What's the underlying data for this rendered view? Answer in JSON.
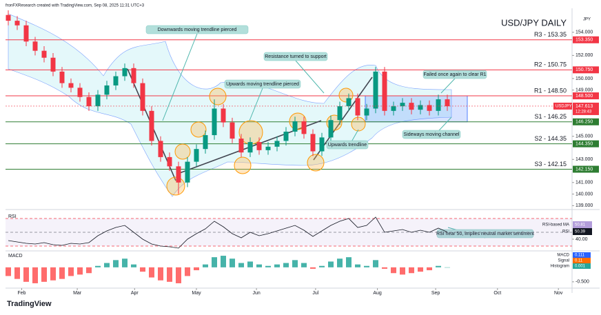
{
  "chart_data": {
    "type": "candlestick",
    "caption": "fronFXResearch created with TradingView.com, Sep 08, 2025 11:31 UTC+3",
    "title": "USD/JPY DAILY",
    "currency": "JPY",
    "brand": "TradingView",
    "up_color": "#089981",
    "down_color": "#f23645",
    "candles": [
      [
        155.5,
        155.9,
        154.6,
        155.0
      ],
      [
        155.0,
        155.4,
        154.2,
        154.6
      ],
      [
        154.6,
        155.0,
        152.8,
        153.2
      ],
      [
        153.2,
        153.6,
        152.0,
        152.4
      ],
      [
        152.4,
        152.8,
        151.4,
        151.8
      ],
      [
        151.8,
        152.2,
        150.2,
        150.6
      ],
      [
        150.6,
        151.0,
        149.2,
        149.6
      ],
      [
        149.6,
        150.0,
        148.8,
        149.2
      ],
      [
        149.2,
        149.6,
        148.0,
        148.4
      ],
      [
        148.4,
        148.8,
        147.2,
        147.6
      ],
      [
        147.6,
        149.0,
        147.2,
        148.6
      ],
      [
        148.6,
        149.8,
        148.2,
        149.4
      ],
      [
        149.4,
        150.6,
        149.0,
        150.2
      ],
      [
        150.2,
        151.3,
        149.8,
        150.9
      ],
      [
        150.9,
        151.3,
        149.2,
        149.6
      ],
      [
        149.6,
        150.0,
        146.8,
        147.2
      ],
      [
        147.2,
        147.6,
        144.2,
        144.6
      ],
      [
        144.6,
        145.0,
        142.8,
        143.2
      ],
      [
        143.2,
        143.6,
        142.0,
        142.4
      ],
      [
        142.4,
        142.8,
        140.0,
        141.0
      ],
      [
        141.0,
        143.2,
        140.6,
        142.8
      ],
      [
        142.8,
        144.3,
        142.4,
        143.9
      ],
      [
        143.9,
        145.5,
        143.5,
        145.1
      ],
      [
        145.1,
        148.2,
        144.7,
        147.4
      ],
      [
        147.4,
        147.8,
        145.8,
        146.2
      ],
      [
        146.2,
        146.6,
        144.4,
        144.8
      ],
      [
        144.8,
        145.2,
        143.2,
        143.6
      ],
      [
        143.6,
        144.9,
        143.2,
        144.5
      ],
      [
        144.5,
        144.9,
        143.4,
        143.8
      ],
      [
        143.8,
        144.5,
        143.4,
        144.1
      ],
      [
        144.1,
        145.0,
        143.7,
        144.6
      ],
      [
        144.6,
        145.8,
        144.2,
        145.4
      ],
      [
        145.4,
        146.7,
        145.0,
        146.3
      ],
      [
        146.3,
        146.7,
        144.8,
        145.2
      ],
      [
        145.2,
        145.6,
        143.3,
        143.7
      ],
      [
        143.7,
        145.3,
        143.3,
        144.9
      ],
      [
        144.9,
        146.8,
        144.5,
        146.4
      ],
      [
        146.4,
        148.0,
        146.0,
        147.6
      ],
      [
        147.6,
        148.7,
        147.2,
        148.3
      ],
      [
        148.3,
        148.7,
        146.4,
        146.8
      ],
      [
        146.8,
        147.8,
        146.4,
        147.4
      ],
      [
        147.4,
        151.0,
        147.0,
        150.6
      ],
      [
        150.6,
        151.0,
        146.8,
        147.2
      ],
      [
        147.2,
        148.0,
        146.8,
        147.6
      ],
      [
        147.6,
        148.3,
        147.2,
        147.9
      ],
      [
        147.9,
        148.3,
        146.9,
        147.3
      ],
      [
        147.3,
        148.1,
        146.9,
        147.7
      ],
      [
        147.7,
        148.1,
        146.8,
        147.2
      ],
      [
        147.2,
        148.6,
        146.8,
        148.2
      ],
      [
        148.2,
        148.6,
        147.2,
        147.6
      ]
    ],
    "xticks": [
      {
        "value": 1.5,
        "label": "Feb"
      },
      {
        "value": 7.7,
        "label": "Mar"
      },
      {
        "value": 14.1,
        "label": "Apr"
      },
      {
        "value": 21,
        "label": "May"
      },
      {
        "value": 27.7,
        "label": "Jun"
      },
      {
        "value": 34.3,
        "label": "Jul"
      },
      {
        "value": 41.2,
        "label": "Aug"
      },
      {
        "value": 47.7,
        "label": "Sep"
      },
      {
        "value": 54.6,
        "label": "Oct"
      },
      {
        "value": 61.4,
        "label": "Nov"
      }
    ],
    "ylim": [
      138.9,
      155.9
    ],
    "yticks": [
      {
        "value": 154,
        "label": "154.000"
      },
      {
        "value": 152,
        "label": "152.000"
      },
      {
        "value": 150,
        "label": "150.000"
      },
      {
        "value": 149,
        "label": "149.000"
      },
      {
        "value": 145,
        "label": "145.000"
      },
      {
        "value": 143,
        "label": "143.000"
      },
      {
        "value": 141,
        "label": "141.000"
      },
      {
        "value": 140,
        "label": "140.000"
      },
      {
        "value": 139,
        "label": "139.000"
      }
    ],
    "levels": [
      {
        "label": "R3 - 153.35",
        "value": 153.35,
        "tag": "153.350",
        "color": "#f23645"
      },
      {
        "label": "R2 - 150.75",
        "value": 150.75,
        "tag": "150.750",
        "color": "#f23645"
      },
      {
        "label": "R1 - 148.50",
        "value": 148.5,
        "tag": "148.500",
        "color": "#f23645"
      },
      {
        "label": "S1 - 146.25",
        "value": 146.25,
        "tag": "146.250",
        "color": "#2e7d32"
      },
      {
        "label": "S2 - 144.35",
        "value": 144.35,
        "tag": "144.350",
        "color": "#2e7d32"
      },
      {
        "label": "S3 - 142.15",
        "value": 142.15,
        "tag": "142.150",
        "color": "#2e7d32"
      }
    ],
    "current": {
      "symbol": "USDJPY",
      "value": 147.613,
      "tag": "147.613",
      "countdown": "12:28:43"
    },
    "annotations": [
      "Downwards moving trendline  pierced",
      "Resistance turned to support",
      "Upwards moving trendline pierced",
      "Failed once again to clear R1",
      "Sideways moving channel",
      "Upwards trendline",
      "RSI near 50, implies neutral market sentiment"
    ],
    "rsi": {
      "name": "RSI",
      "values": [
        38,
        36,
        34,
        33,
        35,
        32,
        31,
        34,
        33,
        35,
        45,
        52,
        57,
        60,
        50,
        40,
        33,
        30,
        29,
        27,
        40,
        48,
        55,
        66,
        58,
        48,
        42,
        50,
        45,
        48,
        52,
        56,
        60,
        53,
        44,
        52,
        60,
        66,
        70,
        57,
        60,
        72,
        50,
        52,
        54,
        50,
        53,
        50,
        56,
        50.39
      ],
      "ylim": [
        25,
        75
      ],
      "yticks": [
        {
          "value": 40,
          "label": "40.00"
        }
      ],
      "levels": [
        70,
        50,
        30
      ],
      "legend": [
        {
          "name": "RSI-based MA",
          "value": 50.81
        },
        {
          "name": "RSI",
          "value": 50.39
        }
      ],
      "color": "#131722"
    },
    "macd": {
      "name": "MACD",
      "histogram": [
        -0.3,
        -0.4,
        -0.5,
        -0.55,
        -0.5,
        -0.45,
        -0.4,
        -0.3,
        -0.25,
        -0.2,
        0.05,
        0.15,
        0.25,
        0.3,
        0.1,
        -0.15,
        -0.35,
        -0.45,
        -0.5,
        -0.55,
        -0.3,
        -0.1,
        0.1,
        0.35,
        0.4,
        0.3,
        0.15,
        0.2,
        0.1,
        0.05,
        0.1,
        0.15,
        0.25,
        0.15,
        -0.05,
        0.05,
        0.2,
        0.3,
        0.35,
        0.1,
        0.05,
        0.25,
        -0.05,
        -0.2,
        -0.25,
        -0.2,
        -0.15,
        -0.1,
        0.05,
        0.001
      ],
      "ylim": [
        -0.67,
        0.52
      ],
      "yticks": [
        {
          "value": -0.5,
          "label": "-0.500"
        }
      ],
      "legend": [
        {
          "name": "MACD",
          "value": 0.111,
          "color": "#2962ff"
        },
        {
          "name": "Signal",
          "value": 0.11,
          "color": "#ff6d00"
        },
        {
          "name": "Histogram",
          "value": 0.001,
          "color": "#26a69a"
        }
      ]
    }
  }
}
